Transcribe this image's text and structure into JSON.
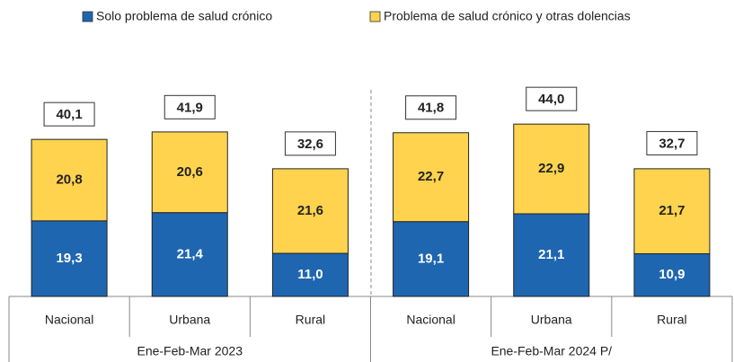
{
  "chart_data": {
    "type": "stacked_bar",
    "categories": [
      "Nacional",
      "Urbana",
      "Rural",
      "Nacional",
      "Urbana",
      "Rural"
    ],
    "groups": [
      "Ene-Feb-Mar 2023",
      "Ene-Feb-Mar 2024 P/"
    ],
    "series": [
      {
        "name": "Solo problema de salud crónico",
        "color": "#1f66b0",
        "values": [
          19.3,
          21.4,
          11.0,
          19.1,
          21.1,
          10.9
        ],
        "value_labels": [
          "19,3",
          "21,4",
          "11,0",
          "19,1",
          "21,1",
          "10,9"
        ]
      },
      {
        "name": "Problema de salud crónico y otras dolencias",
        "color": "#ffd34e",
        "values": [
          20.8,
          20.6,
          21.6,
          22.7,
          22.9,
          21.7
        ],
        "value_labels": [
          "20,8",
          "20,6",
          "21,6",
          "22,7",
          "22,9",
          "21,7"
        ]
      }
    ],
    "totals": [
      40.1,
      41.9,
      32.6,
      41.8,
      44.0,
      32.7
    ],
    "total_labels": [
      "40,1",
      "41,9",
      "32,6",
      "41,8",
      "44,0",
      "32,7"
    ]
  }
}
